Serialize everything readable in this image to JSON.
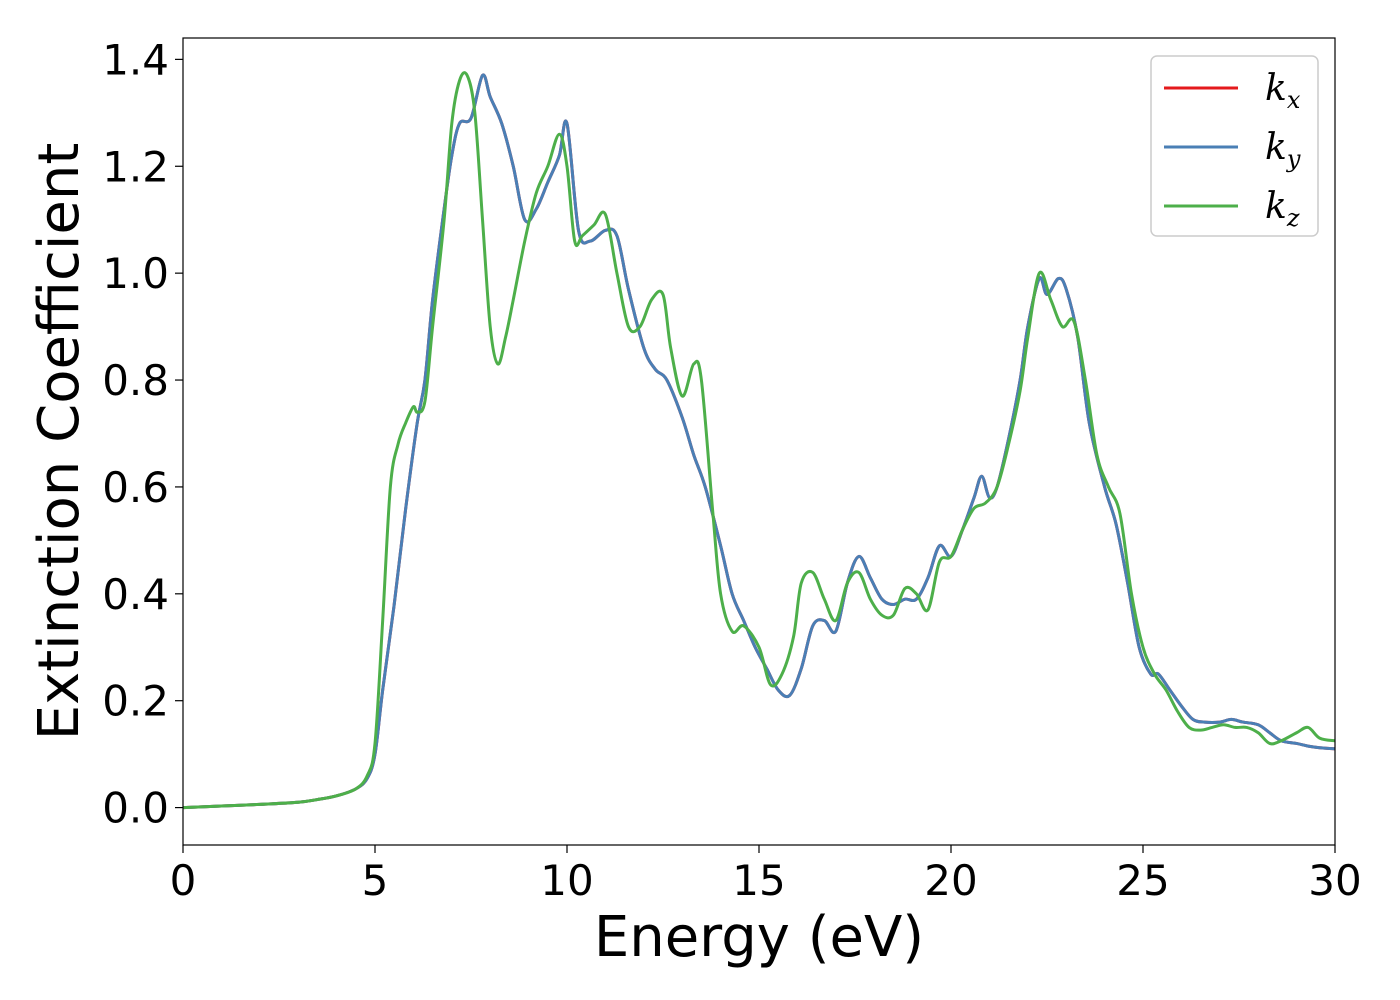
{
  "chart_data": {
    "type": "line",
    "xlabel": "Energy (eV)",
    "ylabel": "Extinction Coefficient",
    "xlim": [
      0,
      30
    ],
    "ylim": [
      -0.07,
      1.44
    ],
    "xticks": [
      0,
      5,
      10,
      15,
      20,
      25,
      30
    ],
    "yticks": [
      0.0,
      0.2,
      0.4,
      0.6,
      0.8,
      1.0,
      1.2,
      1.4
    ],
    "grid": false,
    "legend_position": "top-right",
    "series": [
      {
        "name": "k_x",
        "legend_main": "k",
        "legend_sub": "x",
        "color": "#e41a1c",
        "x": [
          0,
          1,
          2,
          3,
          3.5,
          4,
          4.5,
          4.8,
          5.0,
          5.2,
          5.5,
          5.8,
          6.1,
          6.3,
          6.5,
          6.8,
          7.0,
          7.2,
          7.5,
          7.8,
          8.0,
          8.3,
          8.6,
          8.9,
          9.2,
          9.5,
          9.8,
          10.0,
          10.3,
          10.6,
          11.0,
          11.3,
          11.6,
          12.0,
          12.3,
          12.6,
          13.0,
          13.3,
          13.6,
          14.0,
          14.3,
          14.6,
          14.9,
          15.2,
          15.5,
          15.8,
          16.1,
          16.4,
          16.7,
          17.0,
          17.3,
          17.6,
          17.9,
          18.2,
          18.5,
          18.8,
          19.1,
          19.4,
          19.7,
          20.0,
          20.3,
          20.6,
          20.8,
          21.0,
          21.2,
          21.5,
          21.8,
          22.0,
          22.3,
          22.5,
          22.8,
          23.0,
          23.3,
          23.6,
          24.0,
          24.3,
          24.6,
          24.9,
          25.2,
          25.4,
          25.7,
          26.0,
          26.3,
          26.6,
          27.0,
          27.3,
          27.6,
          28.0,
          28.3,
          28.6,
          29.0,
          29.3,
          29.6,
          30.0
        ],
        "y": [
          0.0,
          0.003,
          0.006,
          0.01,
          0.015,
          0.022,
          0.035,
          0.055,
          0.1,
          0.22,
          0.38,
          0.56,
          0.72,
          0.8,
          0.95,
          1.12,
          1.22,
          1.28,
          1.29,
          1.37,
          1.33,
          1.28,
          1.2,
          1.1,
          1.12,
          1.17,
          1.22,
          1.28,
          1.08,
          1.06,
          1.08,
          1.07,
          0.97,
          0.86,
          0.82,
          0.8,
          0.73,
          0.66,
          0.6,
          0.49,
          0.4,
          0.35,
          0.3,
          0.26,
          0.22,
          0.21,
          0.26,
          0.34,
          0.35,
          0.33,
          0.42,
          0.47,
          0.43,
          0.39,
          0.38,
          0.39,
          0.39,
          0.43,
          0.49,
          0.47,
          0.52,
          0.58,
          0.62,
          0.58,
          0.6,
          0.69,
          0.8,
          0.9,
          0.99,
          0.96,
          0.99,
          0.97,
          0.88,
          0.72,
          0.6,
          0.53,
          0.42,
          0.3,
          0.25,
          0.25,
          0.22,
          0.19,
          0.165,
          0.16,
          0.16,
          0.165,
          0.16,
          0.155,
          0.14,
          0.125,
          0.12,
          0.115,
          0.112,
          0.11
        ]
      },
      {
        "name": "k_y",
        "legend_main": "k",
        "legend_sub": "y",
        "color": "#4a7fb5",
        "x": [
          0,
          1,
          2,
          3,
          3.5,
          4,
          4.5,
          4.8,
          5.0,
          5.2,
          5.5,
          5.8,
          6.1,
          6.3,
          6.5,
          6.8,
          7.0,
          7.2,
          7.5,
          7.8,
          8.0,
          8.3,
          8.6,
          8.9,
          9.2,
          9.5,
          9.8,
          10.0,
          10.3,
          10.6,
          11.0,
          11.3,
          11.6,
          12.0,
          12.3,
          12.6,
          13.0,
          13.3,
          13.6,
          14.0,
          14.3,
          14.6,
          14.9,
          15.2,
          15.5,
          15.8,
          16.1,
          16.4,
          16.7,
          17.0,
          17.3,
          17.6,
          17.9,
          18.2,
          18.5,
          18.8,
          19.1,
          19.4,
          19.7,
          20.0,
          20.3,
          20.6,
          20.8,
          21.0,
          21.2,
          21.5,
          21.8,
          22.0,
          22.3,
          22.5,
          22.8,
          23.0,
          23.3,
          23.6,
          24.0,
          24.3,
          24.6,
          24.9,
          25.2,
          25.4,
          25.7,
          26.0,
          26.3,
          26.6,
          27.0,
          27.3,
          27.6,
          28.0,
          28.3,
          28.6,
          29.0,
          29.3,
          29.6,
          30.0
        ],
        "y": [
          0.0,
          0.003,
          0.006,
          0.01,
          0.015,
          0.022,
          0.035,
          0.055,
          0.1,
          0.22,
          0.38,
          0.56,
          0.72,
          0.8,
          0.95,
          1.12,
          1.22,
          1.28,
          1.29,
          1.37,
          1.33,
          1.28,
          1.2,
          1.1,
          1.12,
          1.17,
          1.22,
          1.28,
          1.08,
          1.06,
          1.08,
          1.07,
          0.97,
          0.86,
          0.82,
          0.8,
          0.73,
          0.66,
          0.6,
          0.49,
          0.4,
          0.35,
          0.3,
          0.26,
          0.22,
          0.21,
          0.26,
          0.34,
          0.35,
          0.33,
          0.42,
          0.47,
          0.43,
          0.39,
          0.38,
          0.39,
          0.39,
          0.43,
          0.49,
          0.47,
          0.52,
          0.58,
          0.62,
          0.58,
          0.6,
          0.69,
          0.8,
          0.9,
          0.99,
          0.96,
          0.99,
          0.97,
          0.88,
          0.72,
          0.6,
          0.53,
          0.42,
          0.3,
          0.25,
          0.25,
          0.22,
          0.19,
          0.165,
          0.16,
          0.16,
          0.165,
          0.16,
          0.155,
          0.14,
          0.125,
          0.12,
          0.115,
          0.112,
          0.11
        ]
      },
      {
        "name": "k_z",
        "legend_main": "k",
        "legend_sub": "z",
        "color": "#4daf4a",
        "x": [
          0,
          1,
          2,
          3,
          3.5,
          4,
          4.5,
          4.8,
          5.0,
          5.2,
          5.4,
          5.6,
          5.8,
          6.0,
          6.1,
          6.3,
          6.5,
          6.8,
          7.0,
          7.2,
          7.4,
          7.6,
          7.8,
          8.0,
          8.2,
          8.4,
          8.6,
          8.9,
          9.2,
          9.5,
          9.8,
          10.0,
          10.2,
          10.4,
          10.7,
          11.0,
          11.3,
          11.6,
          11.9,
          12.2,
          12.5,
          12.7,
          13.0,
          13.3,
          13.5,
          13.8,
          14.0,
          14.3,
          14.6,
          15.0,
          15.3,
          15.6,
          15.9,
          16.1,
          16.4,
          16.7,
          17.0,
          17.3,
          17.6,
          17.9,
          18.2,
          18.5,
          18.8,
          19.1,
          19.4,
          19.7,
          20.0,
          20.3,
          20.6,
          20.9,
          21.2,
          21.5,
          21.8,
          22.0,
          22.3,
          22.6,
          22.9,
          23.2,
          23.5,
          23.8,
          24.1,
          24.4,
          24.7,
          25.0,
          25.3,
          25.6,
          25.9,
          26.2,
          26.5,
          26.8,
          27.1,
          27.4,
          27.7,
          28.0,
          28.3,
          28.6,
          29.0,
          29.3,
          29.6,
          30.0
        ],
        "y": [
          0.0,
          0.003,
          0.006,
          0.01,
          0.015,
          0.022,
          0.035,
          0.06,
          0.12,
          0.35,
          0.6,
          0.68,
          0.72,
          0.75,
          0.74,
          0.76,
          0.9,
          1.1,
          1.28,
          1.36,
          1.37,
          1.3,
          1.1,
          0.9,
          0.83,
          0.88,
          0.95,
          1.06,
          1.15,
          1.2,
          1.26,
          1.2,
          1.06,
          1.07,
          1.09,
          1.11,
          1.0,
          0.9,
          0.9,
          0.95,
          0.96,
          0.86,
          0.77,
          0.83,
          0.8,
          0.55,
          0.4,
          0.33,
          0.34,
          0.3,
          0.23,
          0.25,
          0.32,
          0.42,
          0.44,
          0.39,
          0.35,
          0.42,
          0.44,
          0.39,
          0.36,
          0.36,
          0.41,
          0.4,
          0.37,
          0.46,
          0.47,
          0.52,
          0.56,
          0.57,
          0.6,
          0.68,
          0.78,
          0.88,
          1.0,
          0.95,
          0.9,
          0.91,
          0.8,
          0.66,
          0.6,
          0.55,
          0.4,
          0.3,
          0.25,
          0.22,
          0.18,
          0.15,
          0.145,
          0.15,
          0.155,
          0.15,
          0.15,
          0.14,
          0.12,
          0.125,
          0.14,
          0.15,
          0.13,
          0.125
        ]
      }
    ]
  }
}
